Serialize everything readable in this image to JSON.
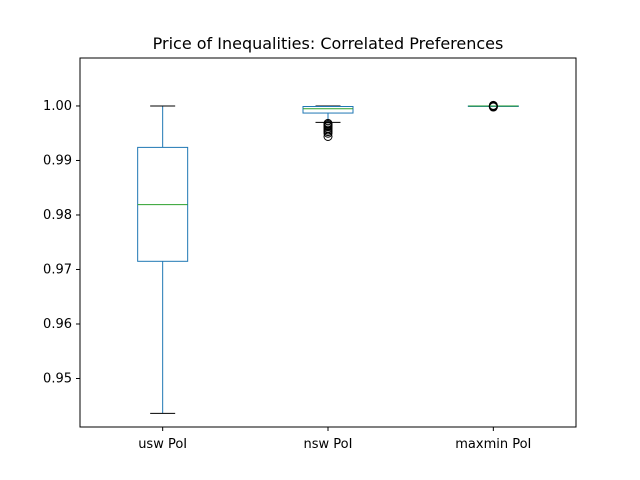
{
  "chart_data": {
    "type": "box",
    "title": "Price of Inequalities: Correlated Preferences",
    "xlabel": "",
    "ylabel": "",
    "ylim": [
      0.9411,
      1.0088
    ],
    "yticks": [
      0.95,
      0.96,
      0.97,
      0.98,
      0.99,
      1.0
    ],
    "ytick_labels": [
      "0.95",
      "0.96",
      "0.97",
      "0.98",
      "0.99",
      "1.00"
    ],
    "grid": false,
    "colors": {
      "box": "#1f77b4",
      "median": "#2ca02c",
      "whisker_cap": "#000000",
      "outlier": "#000000"
    },
    "boxes": [
      {
        "name": "usw PoI",
        "whisker_low": 0.9436,
        "q1": 0.9715,
        "median": 0.9819,
        "q3": 0.9924,
        "whisker_high": 1.0,
        "outliers": []
      },
      {
        "name": "nsw PoI",
        "whisker_low": 0.997,
        "q1": 0.9987,
        "median": 0.9995,
        "q3": 0.9999,
        "whisker_high": 1.0,
        "outliers": [
          0.9944,
          0.995,
          0.9953,
          0.9956,
          0.9959,
          0.9962,
          0.9964,
          0.9966,
          0.9968
        ]
      },
      {
        "name": "maxmin PoI",
        "whisker_low": 1.0,
        "q1": 1.0,
        "median": 1.0,
        "q3": 1.0,
        "whisker_high": 1.0,
        "outliers": [
          0.9998,
          0.9999,
          1.0,
          1.0001
        ]
      }
    ]
  }
}
